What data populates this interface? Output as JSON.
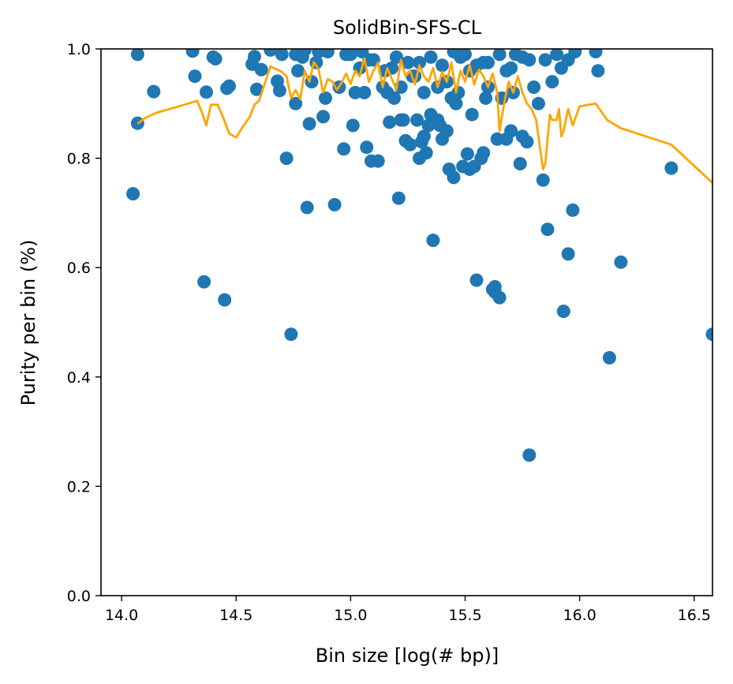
{
  "chart_data": {
    "type": "scatter",
    "title": "SolidBin-SFS-CL",
    "xlabel": "Bin size [log(# bp)]",
    "ylabel": "Purity per bin (%)",
    "xlim": [
      13.91,
      16.58
    ],
    "ylim": [
      0.0,
      1.0
    ],
    "xticks": [
      14.0,
      14.5,
      15.0,
      15.5,
      16.0,
      16.5
    ],
    "xtick_labels": [
      "14.0",
      "14.5",
      "15.0",
      "15.5",
      "16.0",
      "16.5"
    ],
    "yticks": [
      0.0,
      0.2,
      0.4,
      0.6,
      0.8,
      1.0
    ],
    "ytick_labels": [
      "0.0",
      "0.2",
      "0.4",
      "0.6",
      "0.8",
      "1.0"
    ],
    "grid": false,
    "colors": {
      "points": "#1f77b4",
      "trend": "#ffa500"
    },
    "series": [
      {
        "kind": "points",
        "x": [
          14.05,
          14.07,
          14.07,
          14.14,
          14.31,
          14.32,
          14.36,
          14.37,
          14.4,
          14.41,
          14.45,
          14.46,
          14.47,
          14.57,
          14.58,
          14.59,
          14.61,
          14.65,
          14.68,
          14.69,
          14.7,
          14.72,
          14.74,
          14.76,
          14.77,
          14.79,
          14.81,
          14.82,
          14.83,
          14.85,
          14.88,
          14.89,
          14.93,
          14.95,
          14.97,
          15.01,
          15.02,
          15.04,
          15.06,
          15.07,
          15.09,
          15.12,
          15.14,
          15.16,
          15.17,
          15.19,
          15.21,
          15.22,
          15.23,
          15.24,
          15.26,
          15.27,
          15.29,
          15.3,
          15.31,
          15.32,
          15.33,
          15.34,
          15.35,
          15.36,
          15.38,
          15.39,
          15.4,
          15.42,
          15.43,
          15.44,
          15.45,
          15.46,
          15.47,
          15.49,
          15.51,
          15.52,
          15.53,
          15.54,
          15.55,
          15.57,
          15.58,
          15.59,
          15.6,
          15.62,
          15.63,
          15.63,
          15.64,
          15.65,
          15.66,
          15.68,
          15.7,
          15.71,
          15.72,
          15.74,
          15.75,
          15.77,
          15.78,
          15.78,
          15.8,
          15.82,
          15.84,
          15.85,
          15.86,
          15.88,
          15.9,
          15.92,
          15.93,
          15.95,
          15.95,
          15.97,
          15.98,
          16.07,
          16.08,
          16.13,
          16.18,
          16.4,
          16.58,
          15.0,
          15.1,
          15.2,
          15.3,
          15.4,
          15.5,
          15.6,
          15.7,
          15.05,
          15.15,
          15.25,
          15.35,
          15.45,
          15.55,
          15.65,
          14.9,
          14.8,
          15.75,
          15.68,
          15.58,
          15.48,
          15.38,
          15.28,
          15.18,
          15.08,
          14.98,
          14.86,
          14.76,
          15.22,
          15.32,
          15.42,
          15.52
        ],
        "y": [
          0.735,
          0.864,
          0.99,
          0.922,
          0.996,
          0.95,
          0.574,
          0.921,
          0.985,
          0.982,
          0.541,
          0.928,
          0.932,
          0.972,
          0.986,
          0.926,
          0.962,
          0.998,
          0.941,
          0.924,
          0.99,
          0.8,
          0.478,
          0.9,
          0.96,
          0.985,
          0.71,
          0.863,
          0.94,
          0.975,
          0.876,
          0.91,
          0.715,
          0.93,
          0.817,
          0.86,
          0.92,
          0.965,
          0.92,
          0.82,
          0.795,
          0.795,
          0.93,
          0.92,
          0.866,
          0.91,
          0.727,
          0.87,
          0.87,
          0.832,
          0.825,
          0.95,
          0.87,
          0.8,
          0.83,
          0.84,
          0.81,
          0.86,
          0.88,
          0.65,
          0.87,
          0.86,
          0.835,
          0.85,
          0.78,
          0.91,
          0.765,
          0.9,
          0.92,
          0.785,
          0.808,
          0.78,
          0.88,
          0.785,
          0.577,
          0.8,
          0.81,
          0.91,
          0.93,
          0.56,
          0.565,
          0.555,
          0.835,
          0.545,
          0.91,
          0.835,
          0.85,
          0.92,
          0.99,
          0.79,
          0.84,
          0.83,
          0.257,
          0.98,
          0.93,
          0.9,
          0.76,
          0.98,
          0.67,
          0.94,
          0.99,
          0.965,
          0.52,
          0.98,
          0.625,
          0.705,
          0.995,
          0.995,
          0.96,
          0.435,
          0.61,
          0.782,
          0.478,
          0.99,
          0.98,
          0.985,
          0.975,
          0.97,
          0.99,
          0.975,
          0.965,
          0.995,
          0.96,
          0.975,
          0.985,
          0.995,
          0.97,
          0.99,
          0.995,
          0.998,
          0.985,
          0.96,
          0.975,
          0.985,
          0.93,
          0.95,
          0.965,
          0.98,
          0.99,
          0.995,
          0.99,
          0.93,
          0.92,
          0.94,
          0.96
        ]
      },
      {
        "kind": "trend",
        "x": [
          14.07,
          14.1,
          14.15,
          14.25,
          14.33,
          14.35,
          14.37,
          14.39,
          14.42,
          14.45,
          14.47,
          14.5,
          14.53,
          14.56,
          14.58,
          14.6,
          14.62,
          14.65,
          14.68,
          14.7,
          14.72,
          14.74,
          14.76,
          14.78,
          14.8,
          14.82,
          14.84,
          14.86,
          14.88,
          14.9,
          14.92,
          14.94,
          14.96,
          14.98,
          15.0,
          15.02,
          15.04,
          15.06,
          15.08,
          15.1,
          15.12,
          15.14,
          15.16,
          15.18,
          15.2,
          15.22,
          15.24,
          15.26,
          15.28,
          15.3,
          15.32,
          15.34,
          15.36,
          15.38,
          15.4,
          15.42,
          15.44,
          15.46,
          15.48,
          15.5,
          15.52,
          15.54,
          15.56,
          15.58,
          15.6,
          15.62,
          15.64,
          15.65,
          15.67,
          15.69,
          15.71,
          15.73,
          15.75,
          15.77,
          15.79,
          15.81,
          15.83,
          15.84,
          15.85,
          15.87,
          15.88,
          15.9,
          15.91,
          15.92,
          15.93,
          15.95,
          15.97,
          16.0,
          16.07,
          16.12,
          16.18,
          16.4,
          16.58
        ],
        "y": [
          0.863,
          0.873,
          0.883,
          0.895,
          0.905,
          0.885,
          0.86,
          0.898,
          0.898,
          0.868,
          0.845,
          0.838,
          0.858,
          0.876,
          0.898,
          0.905,
          0.93,
          0.968,
          0.962,
          0.958,
          0.95,
          0.91,
          0.925,
          0.908,
          0.96,
          0.94,
          0.976,
          0.963,
          0.92,
          0.945,
          0.94,
          0.925,
          0.938,
          0.955,
          0.936,
          0.96,
          0.95,
          0.983,
          0.94,
          0.96,
          0.975,
          0.93,
          0.965,
          0.945,
          0.925,
          0.98,
          0.95,
          0.96,
          0.935,
          0.97,
          0.95,
          0.94,
          0.965,
          0.93,
          0.958,
          0.94,
          0.975,
          0.92,
          0.96,
          0.94,
          0.97,
          0.935,
          0.962,
          0.95,
          0.93,
          0.955,
          0.92,
          0.85,
          0.9,
          0.94,
          0.92,
          0.95,
          0.92,
          0.9,
          0.89,
          0.87,
          0.81,
          0.78,
          0.79,
          0.88,
          0.87,
          0.87,
          0.89,
          0.84,
          0.85,
          0.89,
          0.86,
          0.895,
          0.9,
          0.87,
          0.855,
          0.825,
          0.755
        ]
      }
    ]
  }
}
